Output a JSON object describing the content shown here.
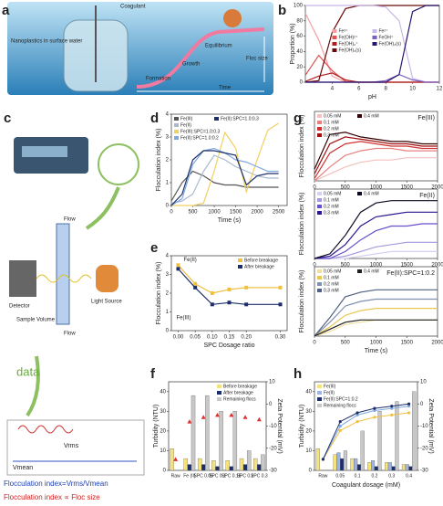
{
  "panel_labels": [
    "a",
    "b",
    "c",
    "d",
    "e",
    "f",
    "g",
    "h"
  ],
  "illustration_a": {
    "coagulant": "Coagulant",
    "nanoplastics": "Nanoplastics in surface water",
    "equilibrium": "Equilibrium",
    "growth": "Growth",
    "formation": "Formation",
    "floc_size": "Floc size",
    "time": "Time"
  },
  "illustration_c": {
    "flow_in": "Flow",
    "flow_out": "Flow",
    "detector": "Detector",
    "light_source": "Light Source",
    "sample_volume": "Sample Volume",
    "data": "data",
    "v_mean": "Vmean",
    "v_rms": "Vrms",
    "formula": "Flocculation index=Vrms/Vmean",
    "relation": "Flocculation index ∝ Floc size"
  },
  "chart_data": [
    {
      "type": "line",
      "xlabel": "pH",
      "ylabel": "Proportion (%)",
      "x": [
        2,
        3,
        4,
        5,
        6,
        7,
        8,
        9,
        10,
        11,
        12
      ],
      "xlim": [
        2,
        12
      ],
      "xticks": [
        4,
        6,
        8,
        10,
        12
      ],
      "ylim": [
        0,
        100
      ],
      "yticks": [
        0,
        20,
        40,
        60,
        80,
        100
      ],
      "legend": "center",
      "series": [
        {
          "name": "Fe³⁺",
          "color": "#f2a0a0",
          "values": [
            90,
            55,
            8,
            0,
            0,
            0,
            0,
            0,
            0,
            0,
            0
          ]
        },
        {
          "name": "Fe(OH)²⁺",
          "color": "#e05050",
          "values": [
            9,
            35,
            15,
            1,
            0,
            0,
            0,
            0,
            0,
            0,
            0
          ]
        },
        {
          "name": "Fe(OH)₂⁺",
          "color": "#b02020",
          "values": [
            1,
            8,
            12,
            3,
            0,
            0,
            0,
            0,
            0,
            0,
            0
          ]
        },
        {
          "name": "Fe(OH)₃(s)",
          "color": "#6b0a0a",
          "values": [
            0,
            2,
            65,
            96,
            100,
            100,
            100,
            100,
            100,
            100,
            100
          ]
        },
        {
          "name": "Fe²⁺",
          "color": "#c9b8e8",
          "values": [
            100,
            100,
            100,
            100,
            100,
            100,
            98,
            80,
            5,
            0,
            0
          ]
        },
        {
          "name": "FeOH⁺",
          "color": "#7a5fc0",
          "values": [
            0,
            0,
            0,
            0,
            0,
            0,
            2,
            10,
            3,
            0,
            0
          ]
        },
        {
          "name": "Fe(OH)₂(s)",
          "color": "#2a1670",
          "values": [
            0,
            0,
            0,
            0,
            0,
            0,
            0,
            10,
            92,
            100,
            100
          ]
        }
      ]
    },
    {
      "type": "line",
      "xlabel": "Time (s)",
      "ylabel": "Flocculation index (%)",
      "x": [
        0,
        250,
        500,
        750,
        1000,
        1250,
        1500,
        1750,
        2000,
        2250,
        2500
      ],
      "xlim": [
        0,
        2700
      ],
      "xticks": [
        0,
        500,
        1000,
        1500,
        2000,
        2500
      ],
      "ylim": [
        0,
        4
      ],
      "yticks": [
        0,
        1,
        2,
        3,
        4
      ],
      "legend": "upper left",
      "series": [
        {
          "name": "Fe(III)",
          "color": "#555555",
          "values": [
            0.2,
            1.0,
            1.5,
            1.3,
            1.0,
            0.9,
            0.9,
            0.8,
            0.8,
            0.8,
            0.8
          ]
        },
        {
          "name": "Fe(II)",
          "color": "#a9b8d0",
          "values": [
            0.1,
            0.2,
            0.5,
            1.5,
            2.2,
            2.0,
            1.7,
            1.5,
            1.3,
            1.2,
            1.2
          ]
        },
        {
          "name": "Fe(III):SPC=1.0:0.3",
          "color": "#f0d060",
          "values": [
            0,
            0,
            0,
            0.1,
            1.5,
            3.2,
            2.5,
            0.6,
            2.0,
            3.3,
            3.6
          ]
        },
        {
          "name": "Fe(II):SPC=1.0:0.2",
          "color": "#7fa8e0",
          "values": [
            0,
            0.3,
            1.8,
            2.4,
            2.5,
            2.3,
            2.0,
            1.9,
            1.7,
            1.5,
            1.5
          ]
        },
        {
          "name": "Fe(II):SPC=1.0:0.3",
          "color": "#1d2f6b",
          "values": [
            0,
            0.5,
            2.0,
            2.4,
            2.4,
            2.3,
            2.2,
            0.9,
            1.3,
            1.4,
            1.4
          ]
        }
      ]
    },
    {
      "type": "line",
      "xlabel": "SPC Dosage ratio",
      "ylabel": "Flocculation index (%)",
      "x": [
        0,
        0.05,
        0.1,
        0.15,
        0.2,
        0.3
      ],
      "xlim": [
        -0.02,
        0.32
      ],
      "xticks": [
        {
          "value": 0,
          "label": "0.00"
        },
        0.05,
        {
          "value": 0.1,
          "label": "0.10"
        },
        0.15,
        {
          "value": 0.2,
          "label": "0.20"
        },
        {
          "value": 0.3,
          "label": "0.30"
        }
      ],
      "ylim": [
        0,
        4
      ],
      "yticks": [
        0,
        1,
        2,
        3,
        4
      ],
      "legend": "upper right",
      "markers": true,
      "annotations": [
        "Fe(II)",
        "Fe(III)"
      ],
      "series": [
        {
          "name": "Before breakage",
          "color": "#f0c040",
          "values": [
            3.5,
            2.5,
            2.0,
            2.2,
            2.3,
            2.3
          ]
        },
        {
          "name": "After breakage",
          "color": "#1d2f6b",
          "values": [
            3.3,
            2.3,
            1.4,
            1.5,
            1.4,
            1.4
          ]
        }
      ]
    },
    {
      "type": "line",
      "title": "Fe(III)",
      "ylabel": "Flocculation index (%)",
      "x": [
        0,
        250,
        500,
        750,
        1000,
        1250,
        1500,
        1750,
        2000
      ],
      "xlim": [
        0,
        2000
      ],
      "xticks": [
        0,
        500,
        1000,
        1500,
        2000
      ],
      "ylim": [
        0,
        3
      ],
      "legend": "upper left",
      "series": [
        {
          "name": "0.05 mM",
          "color": "#f4c0c0",
          "values": [
            0,
            0.3,
            0.6,
            0.8,
            0.9,
            0.9,
            1.0,
            1.0,
            1.0
          ]
        },
        {
          "name": "0.1 mM",
          "color": "#e88080",
          "values": [
            0,
            0.6,
            1.1,
            1.3,
            1.4,
            1.4,
            1.3,
            1.3,
            1.3
          ]
        },
        {
          "name": "0.2 mM",
          "color": "#d03030",
          "values": [
            0.1,
            1.2,
            1.6,
            1.7,
            1.6,
            1.5,
            1.5,
            1.4,
            1.4
          ]
        },
        {
          "name": "0.3 mM",
          "color": "#a01010",
          "values": [
            0.3,
            1.6,
            1.9,
            1.8,
            1.7,
            1.6,
            1.6,
            1.5,
            1.5
          ]
        },
        {
          "name": "0.4 mM",
          "color": "#300000",
          "values": [
            0.5,
            2.0,
            2.1,
            1.9,
            1.8,
            1.7,
            1.7,
            1.6,
            1.6
          ]
        }
      ]
    },
    {
      "type": "line",
      "title": "Fe(II)",
      "ylabel": "Flocculation index (%)",
      "x": [
        0,
        250,
        500,
        750,
        1000,
        1250,
        1500,
        1750,
        2000
      ],
      "xlim": [
        0,
        2000
      ],
      "xticks": [
        0,
        500,
        1000,
        1500,
        2000
      ],
      "ylim": [
        0,
        3
      ],
      "legend": "upper left",
      "series": [
        {
          "name": "0.05 mM",
          "color": "#d8d0f0",
          "values": [
            0,
            0,
            0,
            0.1,
            0.2,
            0.3,
            0.3,
            0.3,
            0.3
          ]
        },
        {
          "name": "0.1 mM",
          "color": "#a898e0",
          "values": [
            0,
            0,
            0.1,
            0.3,
            0.5,
            0.6,
            0.7,
            0.7,
            0.7
          ]
        },
        {
          "name": "0.2 mM",
          "color": "#6a50c8",
          "values": [
            0,
            0,
            0.3,
            0.8,
            1.2,
            1.4,
            1.4,
            1.5,
            1.5
          ]
        },
        {
          "name": "0.3 mM",
          "color": "#2a1690",
          "values": [
            0,
            0.1,
            0.6,
            1.4,
            1.8,
            1.9,
            2.0,
            2.0,
            2.0
          ]
        },
        {
          "name": "0.4 mM",
          "color": "#0a0a20",
          "values": [
            0,
            0.2,
            1.0,
            2.0,
            2.4,
            2.5,
            2.5,
            2.5,
            2.5
          ]
        }
      ]
    },
    {
      "type": "line",
      "title": "Fe(II):SPC=1:0.2",
      "ylabel": "Flocculation index (%)",
      "xlabel": "Time (s)",
      "x": [
        0,
        250,
        500,
        750,
        1000,
        1250,
        1500,
        1750,
        2000
      ],
      "xlim": [
        0,
        2000
      ],
      "xticks": [
        0,
        500,
        1000,
        1500,
        2000
      ],
      "ylim": [
        0,
        3
      ],
      "legend": "upper left",
      "series": [
        {
          "name": "0.05 mM",
          "color": "#f0e0a0",
          "values": [
            0,
            0.2,
            0.5,
            0.6,
            0.7,
            0.7,
            0.7,
            0.7,
            0.7
          ]
        },
        {
          "name": "0.1 mM",
          "color": "#e8c850",
          "values": [
            0,
            0.4,
            0.9,
            1.1,
            1.2,
            1.2,
            1.2,
            1.2,
            1.2
          ]
        },
        {
          "name": "0.2 mM",
          "color": "#8090b0",
          "values": [
            0,
            0.6,
            1.3,
            1.5,
            1.6,
            1.6,
            1.6,
            1.6,
            1.6
          ]
        },
        {
          "name": "0.3 mM",
          "color": "#506080",
          "values": [
            0,
            0.8,
            1.7,
            1.9,
            2.0,
            2.0,
            2.0,
            2.0,
            2.0
          ]
        },
        {
          "name": "0.4 mM",
          "color": "#202020",
          "values": [
            0,
            0.3,
            0.6,
            0.7,
            0.7,
            0.7,
            0.7,
            0.7,
            0.7
          ]
        }
      ]
    },
    {
      "type": "bar",
      "ylabel": "Turbidity (NTU)",
      "y2label": "Zeta Potential (mV)",
      "categories": [
        "Raw",
        "Fe (II)",
        "SPC 0.05",
        "SPC 0.1",
        "SPC 0.15",
        "SPC 0.2",
        "SPC 0.3"
      ],
      "ylim": [
        0,
        45
      ],
      "yticks": [
        0,
        10,
        20,
        30,
        40
      ],
      "y2lim": [
        -30,
        10
      ],
      "y2ticks": [
        -30,
        -20,
        -10,
        0,
        10
      ],
      "legend": "upper right",
      "series": [
        {
          "name": "Before breakage",
          "color": "#f5e27a",
          "values": [
            11,
            6,
            6,
            5,
            5,
            6,
            6
          ]
        },
        {
          "name": "After breakage",
          "color": "#1d2f6b",
          "values": [
            null,
            3,
            3,
            2,
            2,
            3,
            3
          ]
        },
        {
          "name": "Remaining flocs",
          "color": "#c8c8c8",
          "values": [
            null,
            38,
            38,
            30,
            30,
            10,
            8
          ]
        },
        {
          "axis": "y2",
          "mark": "triangle",
          "color": "#e03030",
          "values": [
            -25,
            -8,
            -6,
            -5,
            -5,
            -6,
            -7
          ]
        }
      ]
    },
    {
      "type": "bar",
      "ylabel": "Turbidity (NTU)",
      "y2label": "Zeta Potential (mV)",
      "xlabel": "Coagulant dosage (mM)",
      "categories": [
        "Raw",
        "0.05",
        "0.1",
        "0.2",
        "0.3",
        "0.4"
      ],
      "ylim": [
        0,
        45
      ],
      "yticks": [
        0,
        10,
        20,
        30,
        40
      ],
      "y2lim": [
        -30,
        10
      ],
      "y2ticks": [
        -30,
        -20,
        -10,
        0,
        10
      ],
      "legend": "upper left",
      "series": [
        {
          "name": "Fe(III)",
          "color": "#f5e27a",
          "values": [
            11,
            8,
            6,
            4,
            4,
            3
          ]
        },
        {
          "name": "Fe(II)",
          "color": "#9fb5e0",
          "values": [
            null,
            9,
            6,
            5,
            4,
            3
          ]
        },
        {
          "name": "Fe(II):SPC=1:0.2",
          "color": "#1d2f6b",
          "values": [
            null,
            6,
            3,
            2,
            2,
            2
          ]
        },
        {
          "name": "Remaining flocs",
          "color": "#c8c8c8",
          "values": [
            null,
            10,
            20,
            30,
            35,
            40
          ]
        },
        {
          "axis": "y2",
          "mark": "line",
          "color": "#f0c040",
          "values": [
            -25,
            -12,
            -8,
            -6,
            -5,
            -4
          ]
        },
        {
          "axis": "y2",
          "mark": "line",
          "color": "#7fa8e0",
          "values": [
            -25,
            -10,
            -5,
            -3,
            -2,
            -1
          ]
        },
        {
          "axis": "y2",
          "mark": "line",
          "color": "#1d2f6b",
          "values": [
            -25,
            -8,
            -4,
            -2,
            -1,
            0
          ]
        }
      ]
    }
  ]
}
